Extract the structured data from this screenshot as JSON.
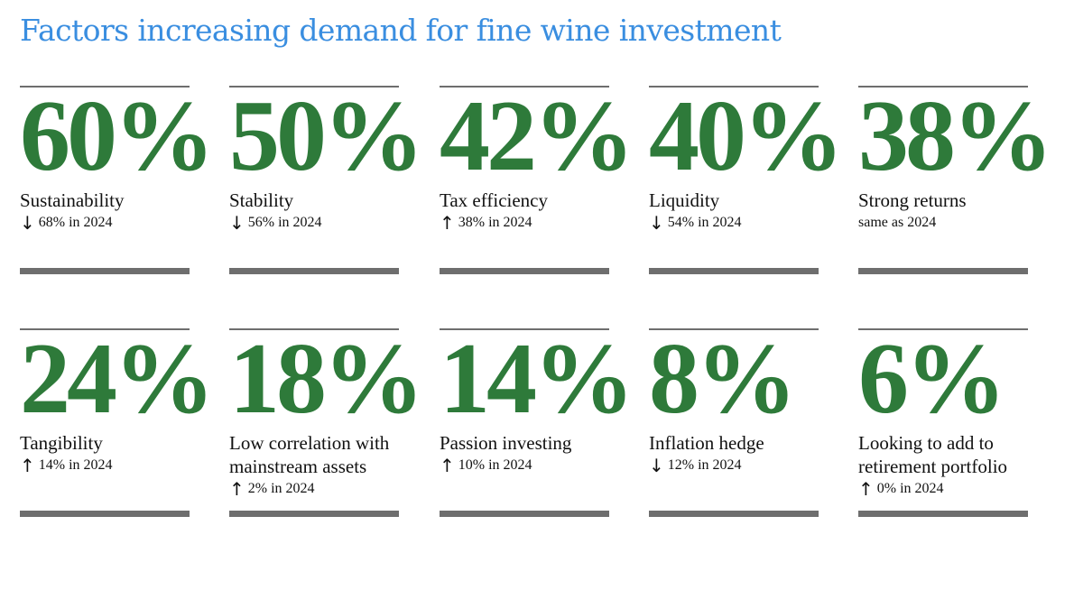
{
  "title": "Factors increasing demand for fine wine investment",
  "colors": {
    "value": "#2e7a3a",
    "title": "#3a8ee0",
    "rule": "#6e6e6e"
  },
  "chart_data": {
    "type": "table",
    "title": "Factors increasing demand for fine wine investment",
    "columns": [
      "value",
      "factor",
      "comparison"
    ],
    "items": [
      {
        "value": "60%",
        "label": "Sustainability",
        "direction": "down",
        "change": "68% in 2024"
      },
      {
        "value": "50%",
        "label": "Stability",
        "direction": "down",
        "change": "56% in 2024"
      },
      {
        "value": "42%",
        "label": "Tax efficiency",
        "direction": "up",
        "change": "38% in 2024"
      },
      {
        "value": "40%",
        "label": "Liquidity",
        "direction": "down",
        "change": "54% in 2024"
      },
      {
        "value": "38%",
        "label": "Strong returns",
        "direction": "none",
        "change": "same as 2024"
      },
      {
        "value": "24%",
        "label": "Tangibility",
        "direction": "up",
        "change": "14% in 2024"
      },
      {
        "value": "18%",
        "label": "Low correlation with mainstream assets",
        "direction": "up",
        "change": "2% in 2024"
      },
      {
        "value": "14%",
        "label": "Passion investing",
        "direction": "up",
        "change": "10% in 2024"
      },
      {
        "value": "8%",
        "label": "Inflation hedge",
        "direction": "down",
        "change": "12% in 2024"
      },
      {
        "value": "6%",
        "label": "Looking to add to retirement portfolio",
        "direction": "up",
        "change": "0% in 2024"
      }
    ]
  }
}
